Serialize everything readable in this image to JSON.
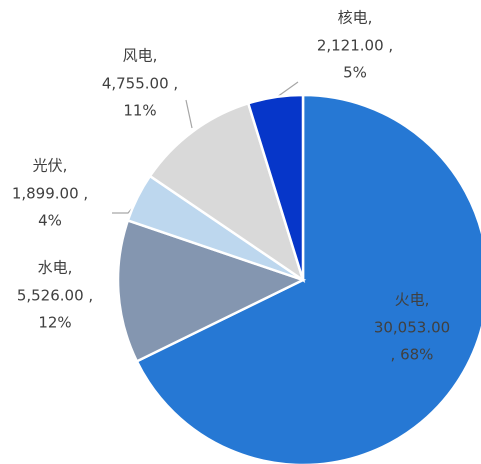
{
  "chart_data": {
    "type": "pie",
    "categories": [
      "火电,",
      "水电,",
      "光伏,",
      "风电,",
      "核电,"
    ],
    "values": [
      30053,
      5526,
      1899,
      4755,
      2121
    ],
    "value_labels": [
      "30,053.00",
      "5,526.00 ,",
      "1,899.00 ,",
      "4,755.00 ,",
      "2,121.00 ,"
    ],
    "percents": [
      68,
      12,
      4,
      11,
      5
    ],
    "percent_labels": [
      ", 68%",
      "12%",
      "4%",
      "11%",
      "5%"
    ],
    "colors": [
      "#2678d4",
      "#8496b0",
      "#bdd7ee",
      "#d9d9d9",
      "#0636c9"
    ]
  }
}
